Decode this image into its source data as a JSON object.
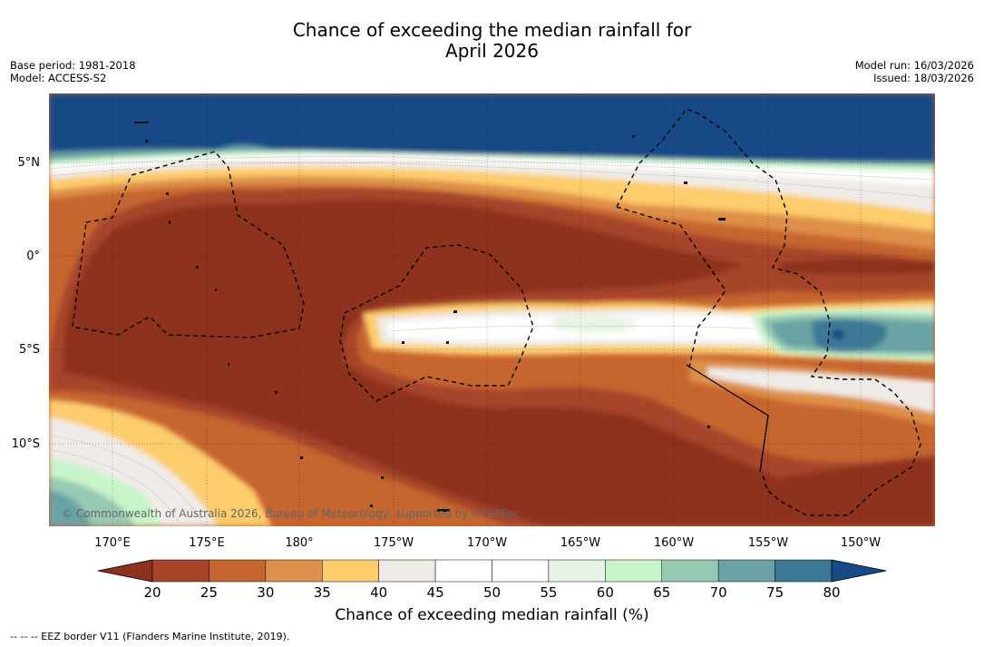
{
  "title": {
    "line1": "Chance of exceeding the median rainfall for",
    "line2": "April 2026"
  },
  "meta": {
    "base_period": "Base period: 1981-2018",
    "model": "Model: ACCESS-S2",
    "model_run": "Model run: 16/03/2026",
    "issued": "Issued: 18/03/2026"
  },
  "map": {
    "lat_labels": [
      "5°N",
      "0°",
      "5°S",
      "10°S"
    ],
    "lon_labels": [
      "170°E",
      "175°E",
      "180°",
      "175°W",
      "170°W",
      "165°W",
      "160°W",
      "155°W",
      "150°W"
    ],
    "copyright": "© Commonwealth of Australia 2026, Bureau of Meteorology, supported by COSPPac"
  },
  "colorbar": {
    "ticks": [
      "20",
      "25",
      "30",
      "35",
      "40",
      "45",
      "50",
      "55",
      "60",
      "65",
      "70",
      "75",
      "80"
    ],
    "colors": [
      "#a6452a",
      "#c5652f",
      "#de904a",
      "#fdcc6c",
      "#efebe6",
      "#ffffff",
      "#ffffff",
      "#e8f4e5",
      "#c7f5c9",
      "#97c9b3",
      "#6aa3a6",
      "#3e7897"
    ],
    "low_color": "#8d321c",
    "high_color": "#154a86",
    "title": "Chance of exceeding median rainfall (%)"
  },
  "footnote": "--  --  -- EEZ border V11 (Flanders Marine Institute, 2019)."
}
